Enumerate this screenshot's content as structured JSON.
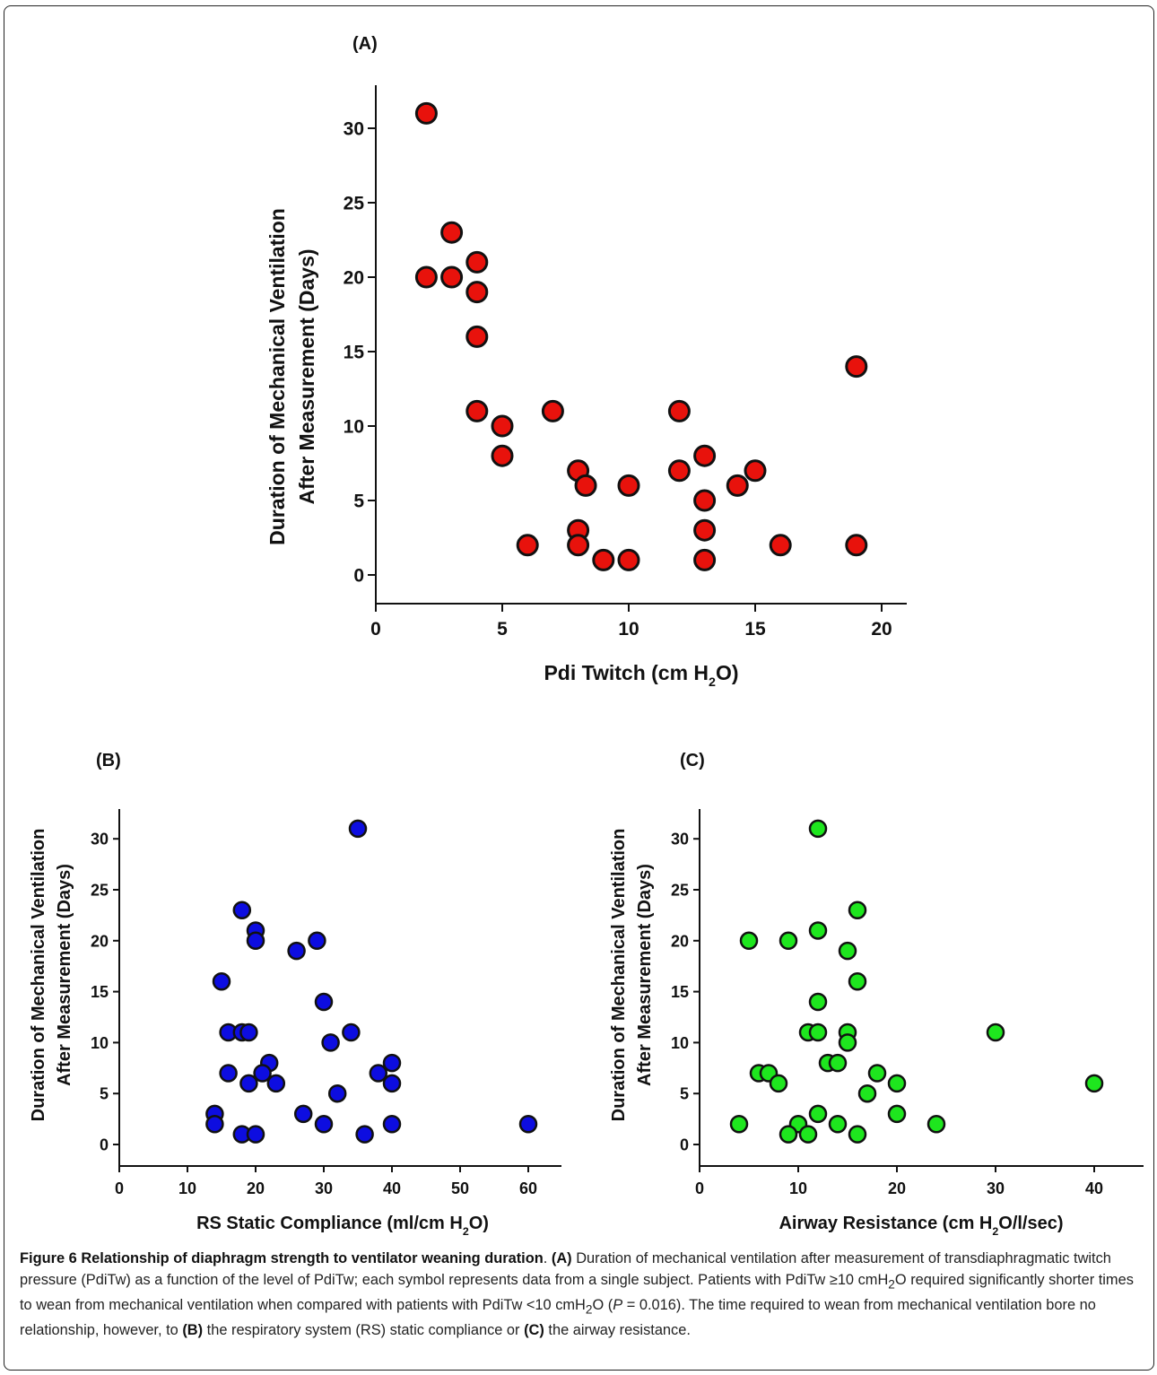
{
  "caption": {
    "figure_label": "Figure 6",
    "figure_title": "Relationship of diaphragm strength to ventilator weaning duration",
    "p1_label": "(A)",
    "p1": "Duration of mechanical ventilation after measurement of transdiaphragmatic twitch pressure (PdiTw) as a function of the level of PdiTw; each symbol represents data from a single subject. Patients with PdiTw ≥10 cmH",
    "p2": "O required significantly shorter times to wean from mechanical ventilation when compared with patients with PdiTw <10 cmH",
    "p3": "O (",
    "p_italic": "P",
    "p4": " = 0.016). The time required to wean from mechanical ventilation bore no relationship, however, to ",
    "b_label": "(B)",
    "p5": " the respiratory system (RS) static compliance or ",
    "c_label": "(C)",
    "p6": " the airway resistance.",
    "sub2": "2"
  },
  "chart_data": [
    {
      "type": "scatter",
      "panel": "(A)",
      "xlabel": "Pdi Twitch (cm H2O)",
      "ylabel_line1": "Duration of Mechanical Ventilation",
      "ylabel_line2": "After Measurement (Days)",
      "xlim": [
        0,
        21
      ],
      "ylim": [
        -2,
        33
      ],
      "xticks": [
        0,
        5,
        10,
        15,
        20
      ],
      "yticks": [
        0,
        5,
        10,
        15,
        20,
        25,
        30
      ],
      "color": "#e8120c",
      "points": [
        [
          2,
          31
        ],
        [
          3,
          23
        ],
        [
          2,
          20
        ],
        [
          3,
          20
        ],
        [
          4,
          21
        ],
        [
          4,
          19
        ],
        [
          4,
          16
        ],
        [
          4,
          11
        ],
        [
          5,
          10
        ],
        [
          5,
          8
        ],
        [
          7,
          11
        ],
        [
          6,
          2
        ],
        [
          8,
          7
        ],
        [
          8.3,
          6
        ],
        [
          8,
          3
        ],
        [
          8,
          2
        ],
        [
          9,
          1
        ],
        [
          10,
          1
        ],
        [
          10,
          6
        ],
        [
          12,
          11
        ],
        [
          12,
          7
        ],
        [
          13,
          8
        ],
        [
          13,
          5
        ],
        [
          13,
          3
        ],
        [
          13,
          1
        ],
        [
          14.3,
          6
        ],
        [
          15,
          7
        ],
        [
          16,
          2
        ],
        [
          19,
          14
        ],
        [
          19,
          2
        ]
      ]
    },
    {
      "type": "scatter",
      "panel": "(B)",
      "xlabel": "RS Static Compliance (ml/cm H2O)",
      "ylabel_line1": "Duration of Mechanical Ventilation",
      "ylabel_line2": "After Measurement (Days)",
      "xlim": [
        0,
        65
      ],
      "ylim": [
        -2,
        33
      ],
      "xticks": [
        0,
        10,
        20,
        30,
        40,
        50,
        60
      ],
      "yticks": [
        0,
        5,
        10,
        15,
        20,
        25,
        30
      ],
      "color": "#0d0de0",
      "points": [
        [
          35,
          31
        ],
        [
          18,
          23
        ],
        [
          20,
          21
        ],
        [
          20,
          20
        ],
        [
          29,
          20
        ],
        [
          26,
          19
        ],
        [
          15,
          16
        ],
        [
          30,
          14
        ],
        [
          16,
          11
        ],
        [
          18,
          11
        ],
        [
          19,
          11
        ],
        [
          34,
          11
        ],
        [
          31,
          10
        ],
        [
          22,
          8
        ],
        [
          40,
          8
        ],
        [
          16,
          7
        ],
        [
          21,
          7
        ],
        [
          38,
          7
        ],
        [
          19,
          6
        ],
        [
          23,
          6
        ],
        [
          40,
          6
        ],
        [
          32,
          5
        ],
        [
          14,
          3
        ],
        [
          27,
          3
        ],
        [
          14,
          2
        ],
        [
          30,
          2
        ],
        [
          40,
          2
        ],
        [
          60,
          2
        ],
        [
          18,
          1
        ],
        [
          20,
          1
        ],
        [
          36,
          1
        ]
      ]
    },
    {
      "type": "scatter",
      "panel": "(C)",
      "xlabel": "Airway Resistance (cm H2O/l/sec)",
      "ylabel_line1": "Duration of Mechanical Ventilation",
      "ylabel_line2": "After Measurement (Days)",
      "xlim": [
        0,
        45
      ],
      "ylim": [
        -2,
        33
      ],
      "xticks": [
        0,
        10,
        20,
        30,
        40
      ],
      "yticks": [
        0,
        5,
        10,
        15,
        20,
        25,
        30
      ],
      "color": "#1ee61e",
      "points": [
        [
          12,
          31
        ],
        [
          16,
          23
        ],
        [
          12,
          21
        ],
        [
          5,
          20
        ],
        [
          9,
          20
        ],
        [
          15,
          19
        ],
        [
          16,
          16
        ],
        [
          12,
          14
        ],
        [
          11,
          11
        ],
        [
          12,
          11
        ],
        [
          15,
          11
        ],
        [
          30,
          11
        ],
        [
          15,
          10
        ],
        [
          13,
          8
        ],
        [
          14,
          8
        ],
        [
          6,
          7
        ],
        [
          7,
          7
        ],
        [
          18,
          7
        ],
        [
          8,
          6
        ],
        [
          20,
          6
        ],
        [
          40,
          6
        ],
        [
          17,
          5
        ],
        [
          12,
          3
        ],
        [
          20,
          3
        ],
        [
          4,
          2
        ],
        [
          10,
          2
        ],
        [
          14,
          2
        ],
        [
          24,
          2
        ],
        [
          9,
          1
        ],
        [
          11,
          1
        ],
        [
          16,
          1
        ]
      ]
    }
  ]
}
